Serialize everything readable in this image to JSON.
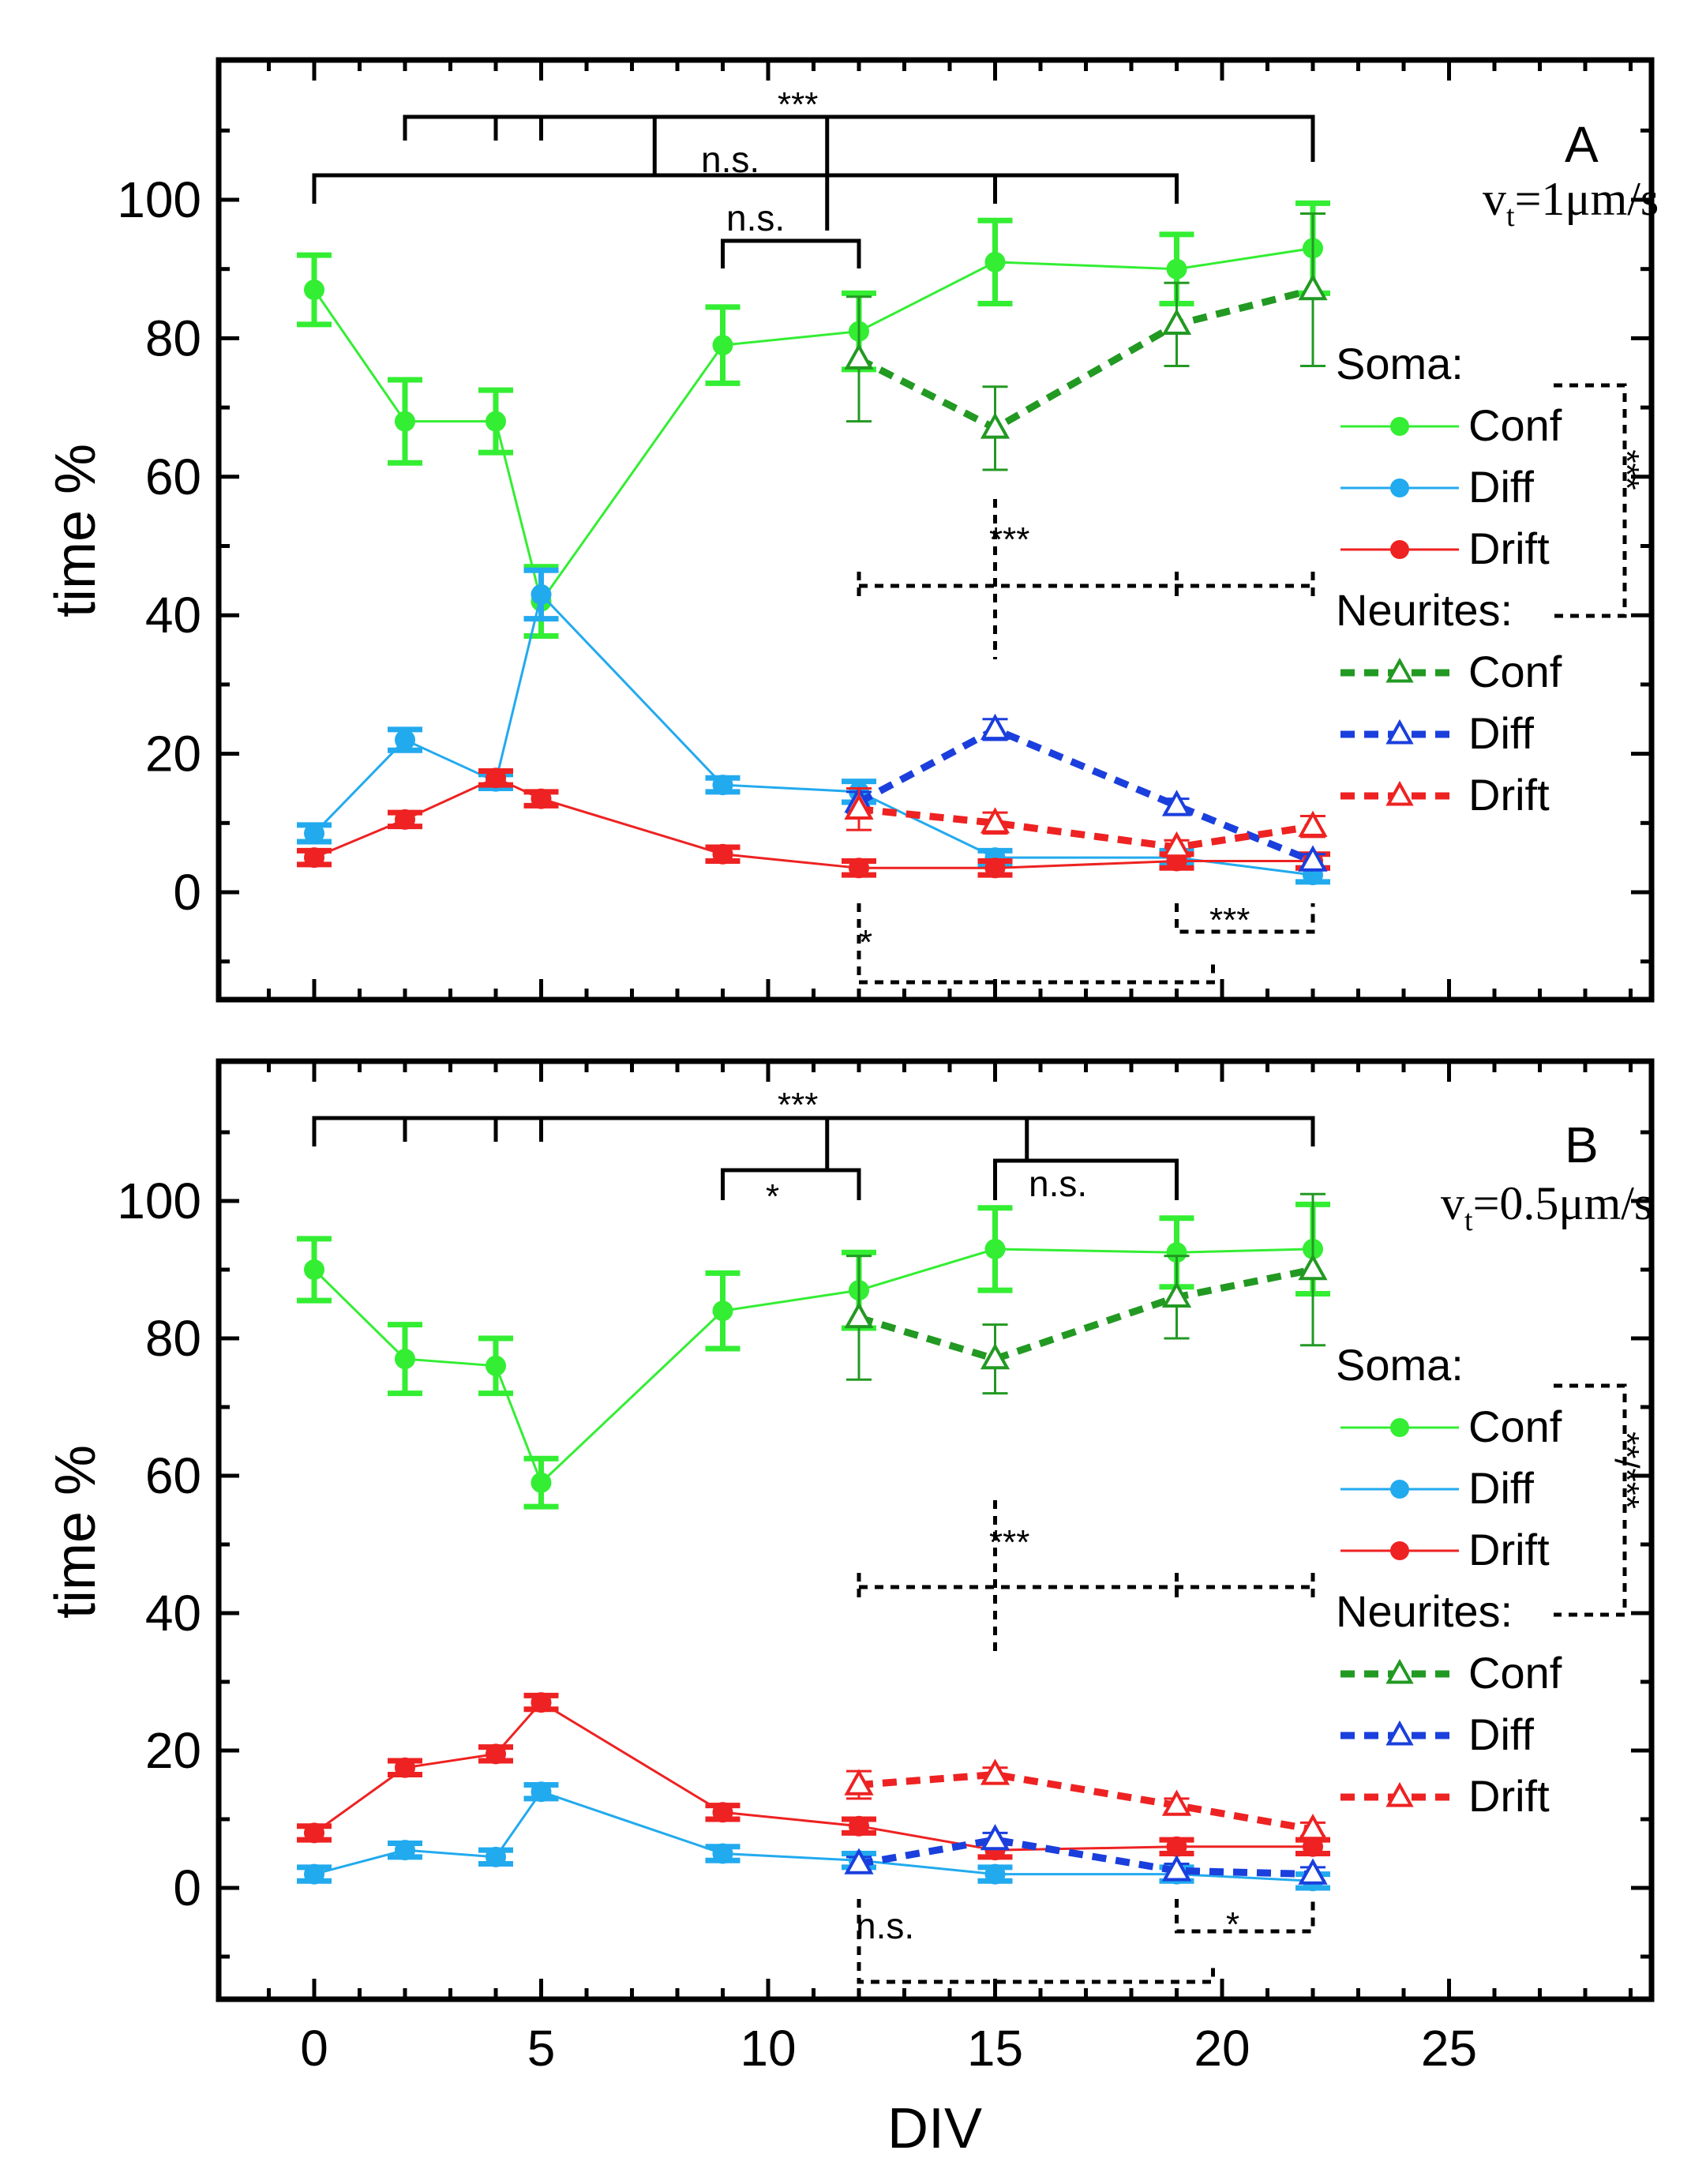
{
  "chart_data": [
    {
      "type": "line",
      "panel": "A",
      "speed_label": "v",
      "speed_sub": "t",
      "speed_value": "=1μm/s",
      "xlabel": "DIV",
      "ylabel": "time %",
      "xlim": [
        -2,
        30
      ],
      "ylim": [
        -20,
        120
      ],
      "xticks": [
        0,
        5,
        10,
        15,
        20,
        25
      ],
      "yticks": [
        0,
        20,
        40,
        60,
        80,
        100
      ],
      "soma": {
        "x": [
          0,
          2,
          4,
          5,
          9,
          12,
          15,
          19,
          22
        ],
        "series": [
          {
            "name": "Conf",
            "color": "#33ee33",
            "values": [
              87,
              68,
              68,
              42,
              79,
              81,
              91,
              90,
              93
            ],
            "errors": [
              5,
              6,
              4.5,
              5,
              5.5,
              5.5,
              6,
              5,
              6.5
            ]
          },
          {
            "name": "Diff",
            "color": "#22aaee",
            "values": [
              8.5,
              22,
              16,
              43,
              15.5,
              14.5,
              5,
              5,
              2.5
            ],
            "errors": [
              1.2,
              1.5,
              1,
              3.5,
              1,
              1.5,
              1,
              1,
              1
            ]
          },
          {
            "name": "Drift",
            "color": "#ee2222",
            "values": [
              5,
              10.5,
              16.5,
              13.5,
              5.5,
              3.5,
              3.5,
              4.5,
              4.5
            ],
            "errors": [
              1,
              1,
              1,
              1,
              1,
              1,
              1,
              1,
              1
            ]
          }
        ]
      },
      "neurites": {
        "x": [
          12,
          15,
          19,
          22
        ],
        "series": [
          {
            "name": "Conf",
            "color": "#229922",
            "values": [
              77,
              67,
              82,
              87
            ],
            "errors": [
              9,
              6,
              6,
              11
            ]
          },
          {
            "name": "Diff",
            "color": "#1a3fdd",
            "values": [
              13,
              23.5,
              12.5,
              4.5
            ],
            "errors": [
              1.5,
              1.5,
              1,
              1
            ]
          },
          {
            "name": "Drift",
            "color": "#ee2222",
            "values": [
              12,
              10,
              6.5,
              9.5
            ],
            "errors": [
              3,
              1.5,
              1,
              1.5
            ]
          }
        ]
      },
      "legend": {
        "soma_title": "Soma:",
        "neurites_title": "Neurites:"
      },
      "annotations": {
        "top": "***",
        "ns1": "n.s.",
        "ns2": "n.s.",
        "mid": "***",
        "low_left": "*",
        "low_right": "***",
        "side": "***"
      }
    },
    {
      "type": "line",
      "panel": "B",
      "speed_label": "v",
      "speed_sub": "t",
      "speed_value": "=0.5μm/s",
      "xlabel": "DIV",
      "ylabel": "time %",
      "xlim": [
        -2,
        30
      ],
      "ylim": [
        -20,
        120
      ],
      "xticks": [
        0,
        5,
        10,
        15,
        20,
        25
      ],
      "xticklabels": [
        "0",
        "5",
        "10",
        "15",
        "20",
        "25"
      ],
      "yticks": [
        0,
        20,
        40,
        60,
        80,
        100
      ],
      "soma": {
        "x": [
          0,
          2,
          4,
          5,
          9,
          12,
          15,
          19,
          22
        ],
        "series": [
          {
            "name": "Conf",
            "color": "#33ee33",
            "values": [
              90,
              77,
              76,
              59,
              84,
              87,
              93,
              92.5,
              93
            ],
            "errors": [
              4.5,
              5,
              4,
              3.5,
              5.5,
              5.5,
              6,
              5,
              6.5
            ]
          },
          {
            "name": "Diff",
            "color": "#22aaee",
            "values": [
              2,
              5.5,
              4.5,
              14,
              5,
              4,
              2,
              2,
              1
            ],
            "errors": [
              1,
              1,
              1,
              1,
              1,
              1,
              1,
              1,
              1
            ]
          },
          {
            "name": "Drift",
            "color": "#ee2222",
            "values": [
              8,
              17.5,
              19.5,
              27,
              11,
              9,
              5.5,
              6,
              6
            ],
            "errors": [
              1,
              1,
              1,
              1,
              1,
              1,
              1,
              1,
              1
            ]
          }
        ]
      },
      "neurites": {
        "x": [
          12,
          15,
          19,
          22
        ],
        "series": [
          {
            "name": "Conf",
            "color": "#229922",
            "values": [
              83,
              77,
              86,
              90
            ],
            "errors": [
              9,
              5,
              6,
              11
            ]
          },
          {
            "name": "Diff",
            "color": "#1a3fdd",
            "values": [
              3.5,
              7,
              2.5,
              2
            ],
            "errors": [
              1,
              1,
              1,
              1
            ]
          },
          {
            "name": "Drift",
            "color": "#ee2222",
            "values": [
              15,
              16.5,
              12,
              8.5
            ],
            "errors": [
              2,
              1,
              1,
              1
            ]
          }
        ]
      },
      "legend": {
        "soma_title": "Soma:",
        "neurites_title": "Neurites:"
      },
      "annotations": {
        "top": "***",
        "ns1": "*",
        "ns2": "n.s.",
        "mid": "***",
        "low_left": "n.s.",
        "low_right": "*",
        "side": "**/***"
      }
    }
  ]
}
